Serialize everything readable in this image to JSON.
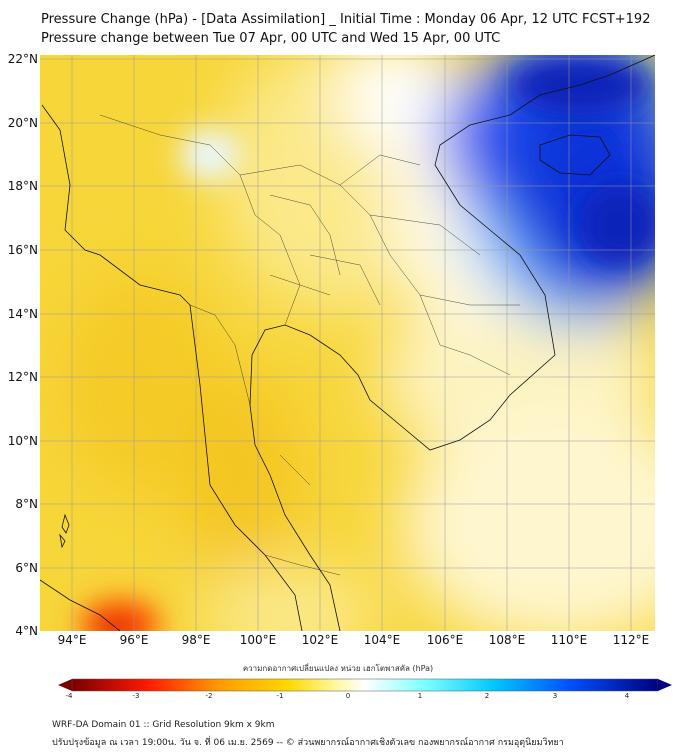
{
  "title": {
    "line1": "Pressure Change (hPa) - [Data Assimilation] _ Initial Time : Monday 06 Apr, 12 UTC FCST+192",
    "line2": "Pressure change between Tue 07 Apr, 00 UTC and Wed 15 Apr, 00 UTC"
  },
  "axes": {
    "lat_labels": [
      "22°N",
      "20°N",
      "18°N",
      "16°N",
      "14°N",
      "12°N",
      "10°N",
      "8°N",
      "6°N",
      "4°N"
    ],
    "lon_labels": [
      "94°E",
      "96°E",
      "98°E",
      "100°E",
      "102°E",
      "104°E",
      "106°E",
      "108°E",
      "110°E",
      "112°E"
    ]
  },
  "colorbar": {
    "label": "ความกดอากาศเปลี่ยนแปลง หน่วย เฮกโตพาสคัล (hPa)",
    "ticks": [
      "-4",
      "-3",
      "-2",
      "-1",
      "0",
      "1",
      "2",
      "3",
      "4"
    ],
    "min": -4,
    "max": 4,
    "colors": [
      "#7a0000",
      "#ff1a00",
      "#ff9a00",
      "#ffd800",
      "#fff8a0",
      "#ffffff",
      "#80ffff",
      "#00c8ff",
      "#0050ff",
      "#000080"
    ]
  },
  "footer": {
    "line1": "WRF-DA Domain 01 :: Grid Resolution 9km x 9km",
    "line2": "ปรับปรุงข้อมูล ณ เวลา 19:00น. วัน จ. ที่ 06 เม.ย. 2569 -- © ส่วนพยากรณ์อากาศเชิงตัวเลข กองพยากรณ์อากาศ กรมอุตุนิยมวิทยา"
  }
}
